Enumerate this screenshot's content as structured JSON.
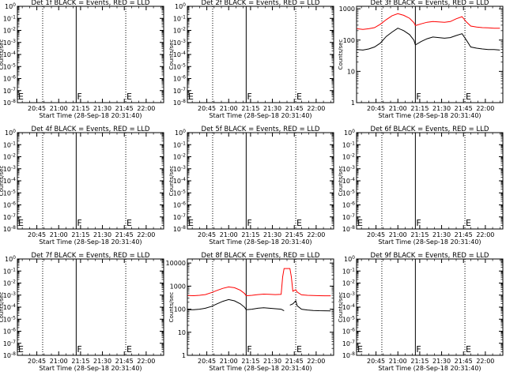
{
  "panels": [
    {
      "title": "Det 1f BLACK = Events, RED = LLD",
      "xlabel": "Start Time (28-Sep-18 20:31:40)",
      "ylabel": "Counts/sec",
      "xtick_labels": [
        "20:45",
        "21:00",
        "21:15",
        "21:30",
        "21:45",
        "22:00"
      ],
      "ytick_labels": [
        "10^0",
        "10^-1",
        "10^-2",
        "10^-3",
        "10^-4",
        "10^-5",
        "10^-6",
        "10^-7",
        "10^-8"
      ],
      "markers": [
        "E",
        "F",
        "E"
      ],
      "series": []
    },
    {
      "title": "Det 2f BLACK = Events, RED = LLD",
      "xlabel": "Start Time (28-Sep-18 20:31:40)",
      "ylabel": "Counts/sec",
      "xtick_labels": [
        "20:45",
        "21:00",
        "21:15",
        "21:30",
        "21:45",
        "22:00"
      ],
      "ytick_labels": [
        "10^0",
        "10^-1",
        "10^-2",
        "10^-3",
        "10^-4",
        "10^-5",
        "10^-6",
        "10^-7",
        "10^-8"
      ],
      "markers": [
        "E",
        "F",
        "E"
      ],
      "series": []
    },
    {
      "title": "Det 3f BLACK = Events, RED = LLD",
      "xlabel": "Start Time (28-Sep-18 20:31:40)",
      "ylabel": "Counts/sec",
      "xtick_labels": [
        "20:45",
        "21:00",
        "21:15",
        "21:30",
        "21:45",
        "22:00"
      ],
      "ytick_labels": [
        "1",
        "10",
        "100",
        "1000"
      ],
      "markers": [
        "",
        "F",
        "E"
      ],
      "series": [
        "black",
        "red"
      ]
    },
    {
      "title": "Det 4f BLACK = Events, RED = LLD",
      "xlabel": "Start Time (28-Sep-18 20:31:40)",
      "ylabel": "Counts/sec",
      "xtick_labels": [
        "20:45",
        "21:00",
        "21:15",
        "21:30",
        "21:45",
        "22:00"
      ],
      "ytick_labels": [
        "10^0",
        "10^-1",
        "10^-2",
        "10^-3",
        "10^-4",
        "10^-5",
        "10^-6",
        "10^-7",
        "10^-8"
      ],
      "markers": [
        "E",
        "F",
        "E"
      ],
      "series": []
    },
    {
      "title": "Det 5f BLACK = Events, RED = LLD",
      "xlabel": "Start Time (28-Sep-18 20:31:40)",
      "ylabel": "Counts/sec",
      "xtick_labels": [
        "20:45",
        "21:00",
        "21:15",
        "21:30",
        "21:45",
        "22:00"
      ],
      "ytick_labels": [
        "10^0",
        "10^-1",
        "10^-2",
        "10^-3",
        "10^-4",
        "10^-5",
        "10^-6",
        "10^-7",
        "10^-8"
      ],
      "markers": [
        "E",
        "F",
        "E"
      ],
      "series": []
    },
    {
      "title": "Det 6f BLACK = Events, RED = LLD",
      "xlabel": "Start Time (28-Sep-18 20:31:40)",
      "ylabel": "Counts/sec",
      "xtick_labels": [
        "20:45",
        "21:00",
        "21:15",
        "21:30",
        "21:45",
        "22:00"
      ],
      "ytick_labels": [
        "10^0",
        "10^-1",
        "10^-2",
        "10^-3",
        "10^-4",
        "10^-5",
        "10^-6",
        "10^-7",
        "10^-8"
      ],
      "markers": [
        "E",
        "F",
        "E"
      ],
      "series": []
    },
    {
      "title": "Det 7f BLACK = Events, RED = LLD",
      "xlabel": "Start Time (28-Sep-18 20:31:40)",
      "ylabel": "Counts/sec",
      "xtick_labels": [
        "20:45",
        "21:00",
        "21:15",
        "21:30",
        "21:45",
        "22:00"
      ],
      "ytick_labels": [
        "10^0",
        "10^-1",
        "10^-2",
        "10^-3",
        "10^-4",
        "10^-5",
        "10^-6",
        "10^-7",
        "10^-8"
      ],
      "markers": [
        "E",
        "F",
        "E"
      ],
      "series": []
    },
    {
      "title": "Det 8f BLACK = Events, RED = LLD",
      "xlabel": "Start Time (28-Sep-18 20:31:40)",
      "ylabel": "Counts/sec",
      "xtick_labels": [
        "20:45",
        "21:00",
        "21:15",
        "21:30",
        "21:45",
        "22:00"
      ],
      "ytick_labels": [
        "1",
        "10",
        "100",
        "1000",
        "10000"
      ],
      "markers": [
        "",
        "F",
        "E"
      ],
      "series": [
        "black",
        "red"
      ]
    },
    {
      "title": "Det 9f BLACK = Events, RED = LLD",
      "xlabel": "Start Time (28-Sep-18 20:31:40)",
      "ylabel": "Counts/sec",
      "xtick_labels": [
        "20:45",
        "21:00",
        "21:15",
        "21:30",
        "21:45",
        "22:00"
      ],
      "ytick_labels": [
        "10^0",
        "10^-1",
        "10^-2",
        "10^-3",
        "10^-4",
        "10^-5",
        "10^-6",
        "10^-7",
        "10^-8"
      ],
      "markers": [
        "E",
        "F",
        "E"
      ],
      "series": []
    }
  ],
  "chart_data": [
    {
      "type": "line",
      "title": "Det 1f BLACK = Events, RED = LLD",
      "xlabel": "Start Time (28-Sep-18 20:31:40)",
      "ylabel": "Counts/sec",
      "y_scale": "log",
      "xlim": [
        "20:31:40",
        "22:12:00"
      ],
      "ylim": [
        1e-08,
        1
      ],
      "dotted_lines": [
        "20:49",
        "21:46"
      ],
      "solid_line": "21:12",
      "series": []
    },
    {
      "type": "line",
      "title": "Det 2f BLACK = Events, RED = LLD",
      "xlabel": "Start Time (28-Sep-18 20:31:40)",
      "ylabel": "Counts/sec",
      "y_scale": "log",
      "xlim": [
        "20:31:40",
        "22:12:00"
      ],
      "ylim": [
        1e-08,
        1
      ],
      "dotted_lines": [
        "20:49",
        "21:46"
      ],
      "solid_line": "21:12",
      "series": []
    },
    {
      "type": "line",
      "title": "Det 3f BLACK = Events, RED = LLD",
      "xlabel": "Start Time (28-Sep-18 20:31:40)",
      "ylabel": "Counts/sec",
      "y_scale": "log",
      "xlim": [
        "20:31:40",
        "22:12:00"
      ],
      "ylim": [
        1,
        1200
      ],
      "dotted_lines": [
        "20:49",
        "21:46"
      ],
      "solid_line": "21:12",
      "series": [
        {
          "color": "black",
          "x": [
            "20:32",
            "20:36",
            "20:40",
            "20:44",
            "20:48",
            "20:52",
            "20:56",
            "21:00",
            "21:04",
            "21:08",
            "21:11",
            "21:12",
            "21:16",
            "21:20",
            "21:24",
            "21:28",
            "21:32",
            "21:36",
            "21:40",
            "21:44",
            "21:47",
            "21:50",
            "21:54",
            "21:58",
            "22:02",
            "22:06",
            "22:10"
          ],
          "y": [
            50,
            48,
            52,
            60,
            80,
            130,
            180,
            240,
            200,
            150,
            100,
            70,
            90,
            110,
            125,
            120,
            115,
            120,
            140,
            160,
            100,
            60,
            55,
            52,
            50,
            50,
            48
          ]
        },
        {
          "color": "red",
          "x": [
            "20:32",
            "20:36",
            "20:40",
            "20:44",
            "20:48",
            "20:52",
            "20:56",
            "21:00",
            "21:04",
            "21:08",
            "21:11",
            "21:12",
            "21:16",
            "21:20",
            "21:24",
            "21:28",
            "21:32",
            "21:36",
            "21:40",
            "21:44",
            "21:47",
            "21:50",
            "21:54",
            "21:58",
            "22:02",
            "22:06",
            "22:10"
          ],
          "y": [
            230,
            220,
            230,
            250,
            320,
            450,
            600,
            700,
            620,
            500,
            360,
            290,
            330,
            370,
            390,
            380,
            370,
            390,
            480,
            560,
            380,
            280,
            260,
            250,
            245,
            240,
            240
          ]
        }
      ]
    },
    {
      "type": "line",
      "title": "Det 4f BLACK = Events, RED = LLD",
      "xlabel": "Start Time (28-Sep-18 20:31:40)",
      "ylabel": "Counts/sec",
      "y_scale": "log",
      "xlim": [
        "20:31:40",
        "22:12:00"
      ],
      "ylim": [
        1e-08,
        1
      ],
      "dotted_lines": [
        "20:49",
        "21:46"
      ],
      "solid_line": "21:12",
      "series": []
    },
    {
      "type": "line",
      "title": "Det 5f BLACK = Events, RED = LLD",
      "xlabel": "Start Time (28-Sep-18 20:31:40)",
      "ylabel": "Counts/sec",
      "y_scale": "log",
      "xlim": [
        "20:31:40",
        "22:12:00"
      ],
      "ylim": [
        1e-08,
        1
      ],
      "dotted_lines": [
        "20:49",
        "21:46"
      ],
      "solid_line": "21:12",
      "series": []
    },
    {
      "type": "line",
      "title": "Det 6f BLACK = Events, RED = LLD",
      "xlabel": "Start Time (28-Sep-18 20:31:40)",
      "ylabel": "Counts/sec",
      "y_scale": "log",
      "xlim": [
        "20:31:40",
        "22:12:00"
      ],
      "ylim": [
        1e-08,
        1
      ],
      "dotted_lines": [
        "20:49",
        "21:46"
      ],
      "solid_line": "21:12",
      "series": []
    },
    {
      "type": "line",
      "title": "Det 7f BLACK = Events, RED = LLD",
      "xlabel": "Start Time (28-Sep-18 20:31:40)",
      "ylabel": "Counts/sec",
      "y_scale": "log",
      "xlim": [
        "20:31:40",
        "22:12:00"
      ],
      "ylim": [
        1e-08,
        1
      ],
      "dotted_lines": [
        "20:49",
        "21:46"
      ],
      "solid_line": "21:12",
      "series": []
    },
    {
      "type": "line",
      "title": "Det 8f BLACK = Events, RED = LLD",
      "xlabel": "Start Time (28-Sep-18 20:31:40)",
      "ylabel": "Counts/sec",
      "y_scale": "log",
      "xlim": [
        "20:31:40",
        "22:12:00"
      ],
      "ylim": [
        1,
        15000
      ],
      "dotted_lines": [
        "20:49",
        "21:46"
      ],
      "solid_line": "21:12",
      "series": [
        {
          "color": "black",
          "x": [
            "20:32",
            "20:36",
            "20:40",
            "20:44",
            "20:48",
            "20:52",
            "20:56",
            "21:00",
            "21:04",
            "21:08",
            "21:11",
            "21:12",
            "21:16",
            "21:20",
            "21:24",
            "21:28",
            "21:32",
            "21:36",
            "21:38",
            "21:39",
            "21:40",
            "21:42",
            "21:44",
            "21:46",
            "21:47",
            "21:50",
            "21:54",
            "21:58",
            "22:02",
            "22:06",
            "22:10"
          ],
          "y": [
            95,
            95,
            100,
            110,
            130,
            170,
            220,
            260,
            230,
            170,
            120,
            95,
            100,
            110,
            115,
            110,
            105,
            100,
            85,
            null,
            null,
            150,
            170,
            230,
            140,
            100,
            92,
            88,
            86,
            85,
            84
          ]
        },
        {
          "color": "red",
          "x": [
            "20:32",
            "20:36",
            "20:40",
            "20:44",
            "20:48",
            "20:52",
            "20:56",
            "21:00",
            "21:04",
            "21:08",
            "21:11",
            "21:12",
            "21:16",
            "21:20",
            "21:24",
            "21:28",
            "21:32",
            "21:36",
            "21:37",
            "21:38",
            "21:42",
            "21:43",
            "21:44",
            "21:46",
            "21:47",
            "21:50",
            "21:54",
            "21:58",
            "22:02",
            "22:06",
            "22:10"
          ],
          "y": [
            390,
            385,
            400,
            430,
            520,
            650,
            800,
            920,
            850,
            660,
            470,
            380,
            400,
            430,
            450,
            440,
            430,
            440,
            2500,
            5800,
            5800,
            2500,
            600,
            700,
            550,
            420,
            400,
            390,
            385,
            380,
            380
          ]
        }
      ]
    },
    {
      "type": "line",
      "title": "Det 9f BLACK = Events, RED = LLD",
      "xlabel": "Start Time (28-Sep-18 20:31:40)",
      "ylabel": "Counts/sec",
      "y_scale": "log",
      "xlim": [
        "20:31:40",
        "22:12:00"
      ],
      "ylim": [
        1e-08,
        1
      ],
      "dotted_lines": [
        "20:49",
        "21:46"
      ],
      "solid_line": "21:12",
      "series": []
    }
  ]
}
